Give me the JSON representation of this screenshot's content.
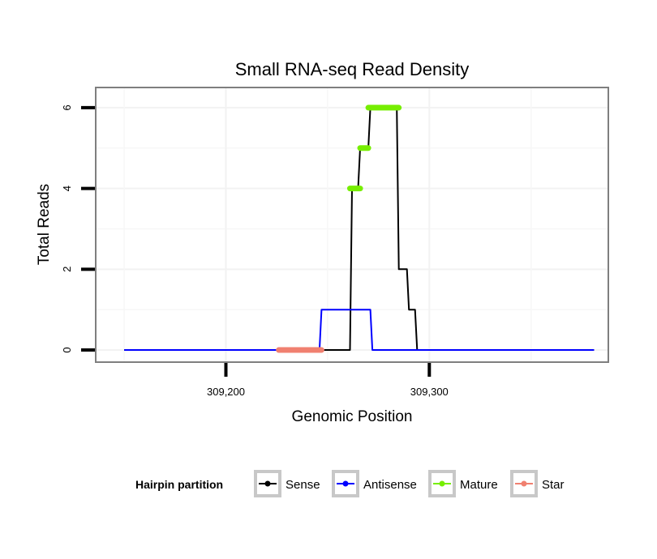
{
  "chart_data": {
    "type": "line",
    "title": "Small RNA-seq Read Density",
    "xlabel": "Genomic Position",
    "ylabel": "Total Reads",
    "xlim": [
      309136,
      309388
    ],
    "ylim": [
      -0.3,
      6.5
    ],
    "x_ticks": [
      309200,
      309300
    ],
    "x_tick_labels": [
      "309,200",
      "309,300"
    ],
    "y_ticks": [
      0,
      2,
      4,
      6
    ],
    "y_tick_labels": [
      "0",
      "2",
      "4",
      "6"
    ],
    "grid": true,
    "legend": {
      "title": "Hairpin partition",
      "position": "bottom",
      "entries": [
        "Sense",
        "Antisense",
        "Mature",
        "Star"
      ]
    },
    "series": [
      {
        "name": "Sense",
        "color": "#000000",
        "style": "line",
        "x": [
          309150,
          309261,
          309262,
          309265,
          309266,
          309270,
          309271,
          309284,
          309285,
          309289,
          309290,
          309293,
          309294,
          309381
        ],
        "values": [
          0,
          0,
          4,
          4,
          5,
          5,
          6,
          6,
          2,
          2,
          1,
          1,
          0,
          0
        ]
      },
      {
        "name": "Antisense",
        "color": "#0000ff",
        "style": "line",
        "x": [
          309150,
          309246,
          309247,
          309271,
          309272,
          309381
        ],
        "values": [
          0,
          0,
          1,
          1,
          0,
          0
        ]
      },
      {
        "name": "Mature",
        "color": "#76ee00",
        "style": "segments",
        "segments": [
          {
            "x": [
              309261,
              309266
            ],
            "y": 4
          },
          {
            "x": [
              309266,
              309270
            ],
            "y": 5
          },
          {
            "x": [
              309270,
              309285
            ],
            "y": 6
          }
        ]
      },
      {
        "name": "Star",
        "color": "#f08070",
        "style": "segments",
        "segments": [
          {
            "x": [
              309226,
              309247
            ],
            "y": 0
          }
        ]
      }
    ]
  }
}
